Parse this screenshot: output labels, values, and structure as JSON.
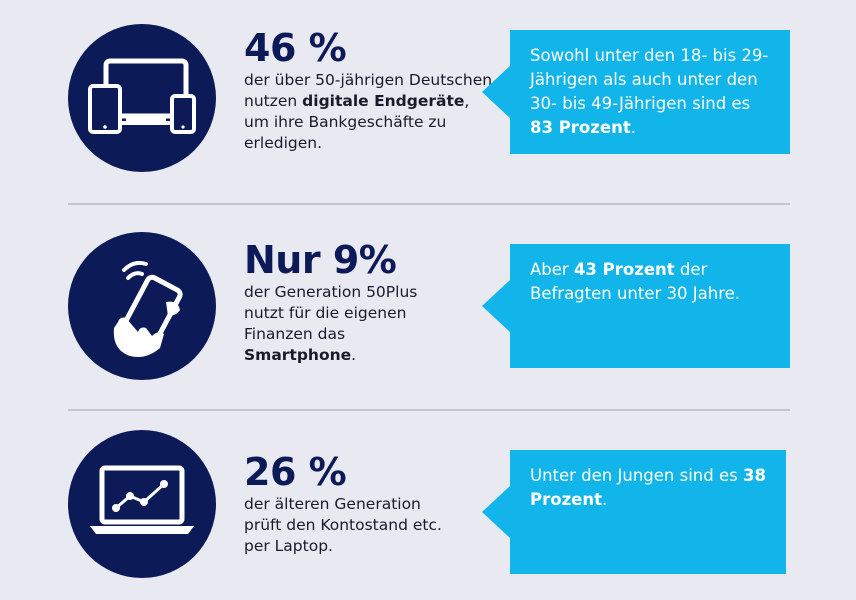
{
  "rows": [
    {
      "icon": "devices-icon",
      "stat": "46 %",
      "text_1": "der über 50-jährigen Deutschen nutzen ",
      "text_bold": "digitale Endgeräte",
      "text_2": ", um ihre Bankgeschäfte zu erledigen.",
      "bubble_1": "Sowohl unter den 18- bis 29-Jährigen als auch unter den 30- bis 49-Jährigen sind es ",
      "bubble_bold": "83 Prozent",
      "bubble_2": "."
    },
    {
      "icon": "smartphone-hand-icon",
      "stat": "Nur 9%",
      "text_1": "der Generation 50Plus nutzt für die eigenen Finanzen das ",
      "text_bold": "Smartphone",
      "text_2": ".",
      "bubble_1": "Aber ",
      "bubble_bold": "43 Prozent",
      "bubble_2": " der Befragten unter 30 Jahre."
    },
    {
      "icon": "laptop-chart-icon",
      "stat": "26 %",
      "text_1": "der älteren Generation prüft den Kontostand etc. per Laptop.",
      "text_bold": "",
      "text_2": "",
      "bubble_1": "Unter den Jungen sind es ",
      "bubble_bold": "38 Prozent",
      "bubble_2": "."
    }
  ],
  "colors": {
    "background": "#e9e9f2",
    "navy": "#0c1a57",
    "cyan": "#12b5ea",
    "divider": "#c4c6cf"
  }
}
